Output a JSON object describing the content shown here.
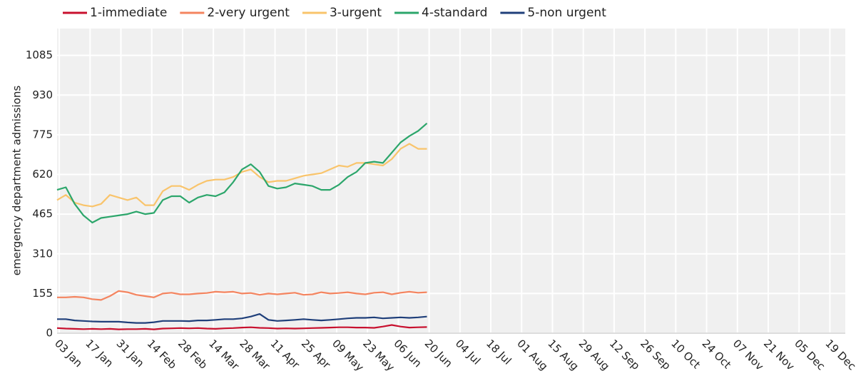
{
  "chart_data": {
    "type": "line",
    "ylabel": "emergency department admissions",
    "x": [
      "02 Jan",
      "06 Jan",
      "10 Jan",
      "14 Jan",
      "18 Jan",
      "22 Jan",
      "26 Jan",
      "30 Jan",
      "03 Feb",
      "07 Feb",
      "11 Feb",
      "15 Feb",
      "19 Feb",
      "23 Feb",
      "27 Feb",
      "03 Mar",
      "07 Mar",
      "11 Mar",
      "15 Mar",
      "19 Mar",
      "23 Mar",
      "27 Mar",
      "31 Mar",
      "04 Apr",
      "08 Apr",
      "12 Apr",
      "16 Apr",
      "20 Apr",
      "24 Apr",
      "28 Apr",
      "02 May",
      "06 May",
      "10 May",
      "14 May",
      "18 May",
      "22 May",
      "26 May",
      "30 May",
      "03 Jun",
      "07 Jun",
      "11 Jun",
      "15 Jun",
      "19 Jun"
    ],
    "series": [
      {
        "name": "1-immediate",
        "color": "#c8102e",
        "values": [
          20,
          18,
          17,
          16,
          17,
          16,
          17,
          15,
          16,
          16,
          17,
          15,
          18,
          19,
          20,
          19,
          20,
          18,
          17,
          19,
          20,
          22,
          23,
          21,
          20,
          18,
          19,
          18,
          19,
          20,
          21,
          22,
          23,
          23,
          22,
          22,
          21,
          26,
          32,
          26,
          22,
          23,
          24
        ]
      },
      {
        "name": "2-very urgent",
        "color": "#f4845f",
        "values": [
          140,
          140,
          142,
          140,
          133,
          130,
          145,
          165,
          160,
          150,
          145,
          140,
          155,
          158,
          152,
          152,
          155,
          157,
          162,
          160,
          162,
          155,
          157,
          150,
          155,
          152,
          155,
          158,
          150,
          152,
          160,
          155,
          157,
          160,
          155,
          152,
          158,
          160,
          152,
          158,
          162,
          158,
          160
        ]
      },
      {
        "name": "3-urgent",
        "color": "#f9c46b",
        "values": [
          520,
          540,
          510,
          500,
          495,
          505,
          540,
          530,
          520,
          530,
          500,
          500,
          555,
          575,
          575,
          560,
          580,
          595,
          600,
          600,
          610,
          630,
          640,
          610,
          590,
          595,
          595,
          605,
          615,
          620,
          625,
          640,
          655,
          650,
          665,
          665,
          660,
          655,
          680,
          720,
          740,
          720,
          720
        ]
      },
      {
        "name": "4-standard",
        "color": "#2ca66b",
        "values": [
          560,
          570,
          505,
          460,
          432,
          450,
          455,
          460,
          465,
          475,
          465,
          470,
          520,
          535,
          535,
          510,
          530,
          540,
          535,
          550,
          590,
          640,
          660,
          630,
          575,
          565,
          570,
          585,
          580,
          575,
          560,
          560,
          580,
          610,
          630,
          665,
          670,
          665,
          705,
          745,
          770,
          790,
          820
        ]
      },
      {
        "name": "5-non urgent",
        "color": "#1f3f7a",
        "values": [
          55,
          55,
          50,
          48,
          46,
          45,
          45,
          45,
          42,
          40,
          40,
          43,
          48,
          48,
          48,
          47,
          50,
          50,
          52,
          55,
          55,
          58,
          65,
          75,
          52,
          48,
          50,
          52,
          55,
          52,
          50,
          52,
          55,
          58,
          60,
          60,
          62,
          58,
          60,
          62,
          60,
          62,
          65
        ]
      }
    ],
    "xlim": [
      "02 Jan",
      "26 Dec"
    ],
    "xticks": [
      "03 Jan",
      "17 Jan",
      "31 Jan",
      "14 Feb",
      "28 Feb",
      "14 Mar",
      "28 Mar",
      "11 Apr",
      "25 Apr",
      "09 May",
      "23 May",
      "06 Jun",
      "20 Jun",
      "04 Jul",
      "18 Jul",
      "01 Aug",
      "15 Aug",
      "29 Aug",
      "12 Sep",
      "26 Sep",
      "10 Oct",
      "24 Oct",
      "07 Nov",
      "21 Nov",
      "05 Dec",
      "19 Dec"
    ],
    "ylim": [
      0,
      1190
    ],
    "yticks": [
      0,
      155,
      310,
      465,
      620,
      775,
      930,
      1085
    ],
    "grid": true,
    "legend": "top"
  }
}
